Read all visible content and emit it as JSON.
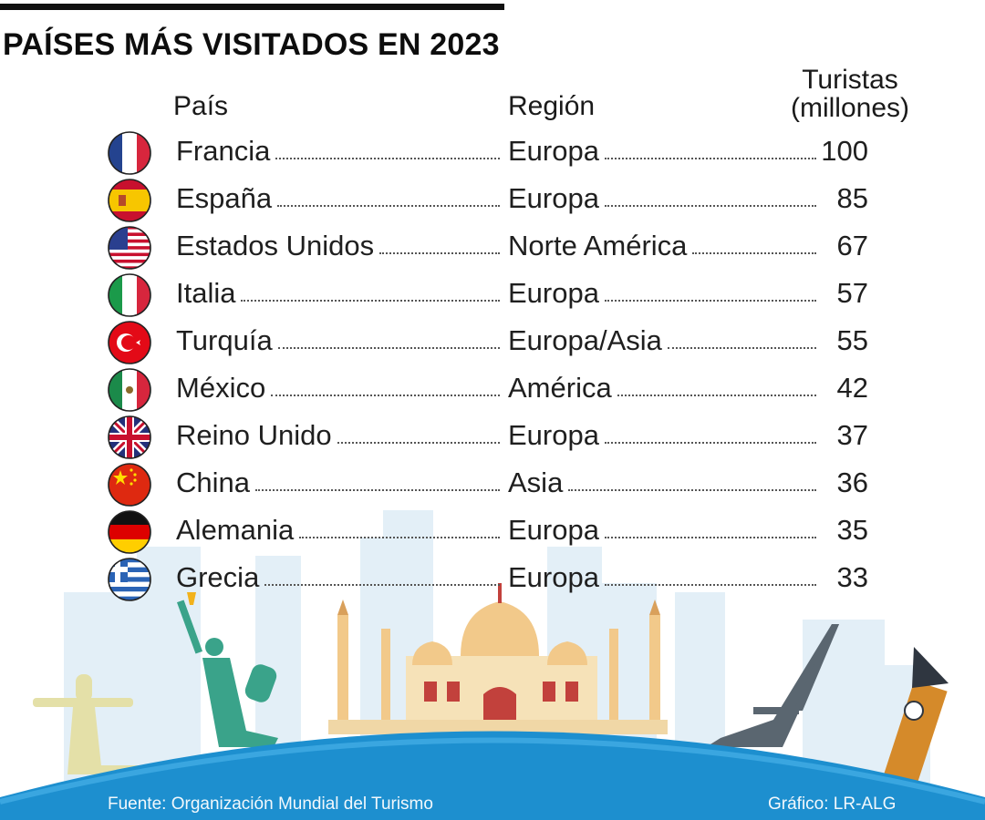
{
  "title": "PAÍSES MÁS VISITADOS EN 2023",
  "headers": {
    "country": "País",
    "region": "Región",
    "value_line1": "Turistas",
    "value_line2": "(millones)"
  },
  "chart_data": {
    "type": "table",
    "title": "PAÍSES MÁS VISITADOS EN 2023",
    "columns": [
      "País",
      "Región",
      "Turistas (millones)"
    ],
    "rows": [
      {
        "flag": "france-flag-icon",
        "country": "Francia",
        "region": "Europa",
        "value": 100
      },
      {
        "flag": "spain-flag-icon",
        "country": "España",
        "region": "Europa",
        "value": 85
      },
      {
        "flag": "usa-flag-icon",
        "country": "Estados Unidos",
        "region": "Norte América",
        "value": 67
      },
      {
        "flag": "italy-flag-icon",
        "country": "Italia",
        "region": "Europa",
        "value": 57
      },
      {
        "flag": "turkey-flag-icon",
        "country": "Turquía",
        "region": "Europa/Asia",
        "value": 55
      },
      {
        "flag": "mexico-flag-icon",
        "country": "México",
        "region": "América",
        "value": 42
      },
      {
        "flag": "uk-flag-icon",
        "country": "Reino Unido",
        "region": "Europa",
        "value": 37
      },
      {
        "flag": "china-flag-icon",
        "country": "China",
        "region": "Asia",
        "value": 36
      },
      {
        "flag": "germany-flag-icon",
        "country": "Alemania",
        "region": "Europa",
        "value": 35
      },
      {
        "flag": "greece-flag-icon",
        "country": "Grecia",
        "region": "Europa",
        "value": 33
      }
    ]
  },
  "footer": {
    "source": "Fuente: Organización Mundial del Turismo",
    "credit": "Gráfico: LR-ALG"
  },
  "colors": {
    "globe": "#1d8fcf",
    "title": "#0d0d0d"
  }
}
